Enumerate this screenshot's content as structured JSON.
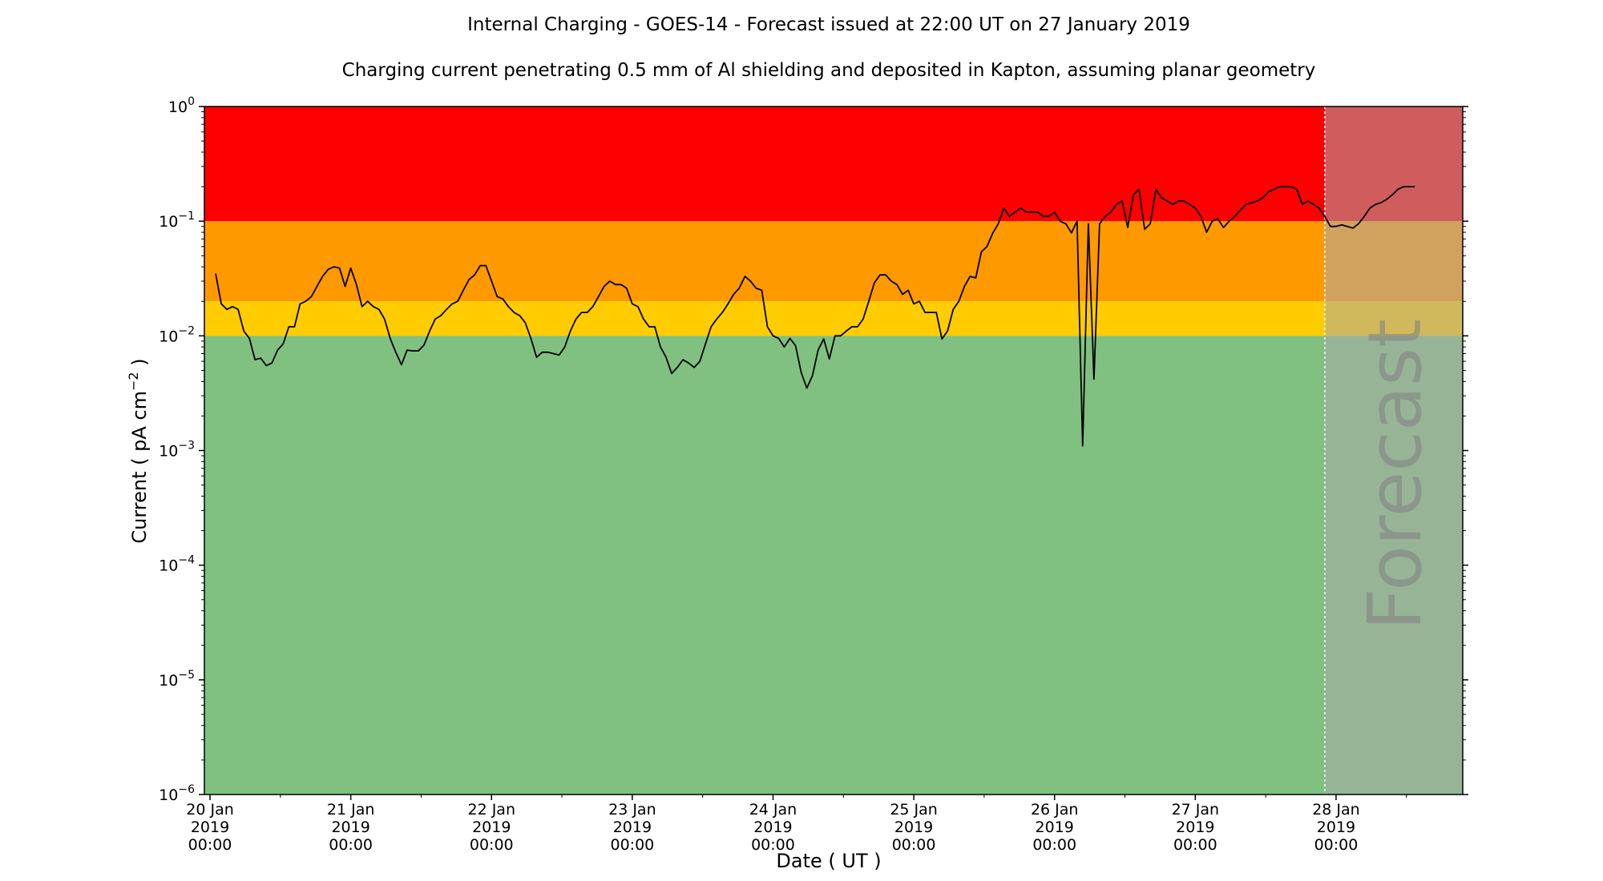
{
  "chart_data": {
    "type": "line",
    "title": "Internal Charging - GOES-14 - Forecast issued at 22:00 UT on 27 January 2019",
    "subtitle": "Charging current penetrating 0.5 mm of Al shielding and deposited in Kapton, assuming planar geometry",
    "xlabel": "Date ( UT )",
    "ylabel": "Current ( pA cm",
    "ylabel_exponent": "−2",
    "ylabel_suffix": " )",
    "yscale": "log",
    "ylim": [
      1e-06,
      1
    ],
    "xlim_days": [
      19.96,
      28.9
    ],
    "x_unit": "day of January 2019",
    "y_ticks": [
      {
        "base": "10",
        "exp": "−6",
        "value": 1e-06
      },
      {
        "base": "10",
        "exp": "−5",
        "value": 1e-05
      },
      {
        "base": "10",
        "exp": "−4",
        "value": 0.0001
      },
      {
        "base": "10",
        "exp": "−3",
        "value": 0.001
      },
      {
        "base": "10",
        "exp": "−2",
        "value": 0.01
      },
      {
        "base": "10",
        "exp": "−1",
        "value": 0.1
      },
      {
        "base": "10",
        "exp": "0",
        "value": 1
      }
    ],
    "x_ticks": [
      {
        "day": 20,
        "lines": [
          "20 Jan",
          "2019",
          "00:00"
        ]
      },
      {
        "day": 21,
        "lines": [
          "21 Jan",
          "2019",
          "00:00"
        ]
      },
      {
        "day": 22,
        "lines": [
          "22 Jan",
          "2019",
          "00:00"
        ]
      },
      {
        "day": 23,
        "lines": [
          "23 Jan",
          "2019",
          "00:00"
        ]
      },
      {
        "day": 24,
        "lines": [
          "24 Jan",
          "2019",
          "00:00"
        ]
      },
      {
        "day": 25,
        "lines": [
          "25 Jan",
          "2019",
          "00:00"
        ]
      },
      {
        "day": 26,
        "lines": [
          "26 Jan",
          "2019",
          "00:00"
        ]
      },
      {
        "day": 27,
        "lines": [
          "27 Jan",
          "2019",
          "00:00"
        ]
      },
      {
        "day": 28,
        "lines": [
          "28 Jan",
          "2019",
          "00:00"
        ]
      }
    ],
    "minor_x_ticks": [
      20.5,
      21.5,
      22.5,
      23.5,
      24.5,
      25.5,
      26.5,
      27.5,
      28.5
    ],
    "bands": [
      {
        "name": "red",
        "from": 0.1,
        "to": 1,
        "color": "#ff0000"
      },
      {
        "name": "orange",
        "from": 0.02,
        "to": 0.1,
        "color": "#ff9900"
      },
      {
        "name": "yellow",
        "from": 0.01,
        "to": 0.02,
        "color": "#ffcc00"
      },
      {
        "name": "green",
        "from": 1e-06,
        "to": 0.01,
        "color": "#80c080"
      }
    ],
    "forecast": {
      "start_day": 27.92,
      "label": "Forecast",
      "overlay_color": "#a9a9a9",
      "overlay_opacity": 0.55
    },
    "series": [
      {
        "color": "#000000",
        "points": [
          [
            20.04,
            0.035
          ],
          [
            20.08,
            0.019
          ],
          [
            20.12,
            0.017
          ],
          [
            20.16,
            0.018
          ],
          [
            20.2,
            0.017
          ],
          [
            20.24,
            0.011
          ],
          [
            20.28,
            0.0095
          ],
          [
            20.32,
            0.0062
          ],
          [
            20.36,
            0.0064
          ],
          [
            20.4,
            0.0055
          ],
          [
            20.44,
            0.0058
          ],
          [
            20.48,
            0.0075
          ],
          [
            20.52,
            0.0085
          ],
          [
            20.56,
            0.012
          ],
          [
            20.6,
            0.012
          ],
          [
            20.64,
            0.019
          ],
          [
            20.68,
            0.02
          ],
          [
            20.72,
            0.022
          ],
          [
            20.76,
            0.027
          ],
          [
            20.8,
            0.033
          ],
          [
            20.84,
            0.038
          ],
          [
            20.88,
            0.04
          ],
          [
            20.92,
            0.039
          ],
          [
            20.96,
            0.027
          ],
          [
            21.0,
            0.039
          ],
          [
            21.04,
            0.028
          ],
          [
            21.08,
            0.018
          ],
          [
            21.12,
            0.02
          ],
          [
            21.16,
            0.018
          ],
          [
            21.2,
            0.017
          ],
          [
            21.24,
            0.014
          ],
          [
            21.28,
            0.0095
          ],
          [
            21.32,
            0.0072
          ],
          [
            21.36,
            0.0056
          ],
          [
            21.4,
            0.0075
          ],
          [
            21.44,
            0.0074
          ],
          [
            21.48,
            0.0074
          ],
          [
            21.52,
            0.0083
          ],
          [
            21.56,
            0.011
          ],
          [
            21.6,
            0.014
          ],
          [
            21.64,
            0.015
          ],
          [
            21.68,
            0.017
          ],
          [
            21.72,
            0.019
          ],
          [
            21.76,
            0.02
          ],
          [
            21.8,
            0.025
          ],
          [
            21.84,
            0.031
          ],
          [
            21.88,
            0.034
          ],
          [
            21.92,
            0.041
          ],
          [
            21.96,
            0.041
          ],
          [
            22.0,
            0.03
          ],
          [
            22.04,
            0.022
          ],
          [
            22.08,
            0.021
          ],
          [
            22.12,
            0.018
          ],
          [
            22.16,
            0.016
          ],
          [
            22.2,
            0.015
          ],
          [
            22.24,
            0.013
          ],
          [
            22.28,
            0.0095
          ],
          [
            22.32,
            0.0065
          ],
          [
            22.36,
            0.0072
          ],
          [
            22.4,
            0.0072
          ],
          [
            22.44,
            0.007
          ],
          [
            22.48,
            0.0068
          ],
          [
            22.52,
            0.008
          ],
          [
            22.56,
            0.011
          ],
          [
            22.6,
            0.014
          ],
          [
            22.64,
            0.016
          ],
          [
            22.68,
            0.016
          ],
          [
            22.72,
            0.018
          ],
          [
            22.76,
            0.022
          ],
          [
            22.8,
            0.027
          ],
          [
            22.84,
            0.03
          ],
          [
            22.88,
            0.028
          ],
          [
            22.92,
            0.028
          ],
          [
            22.96,
            0.026
          ],
          [
            23.0,
            0.019
          ],
          [
            23.04,
            0.018
          ],
          [
            23.08,
            0.014
          ],
          [
            23.12,
            0.012
          ],
          [
            23.16,
            0.012
          ],
          [
            23.2,
            0.008
          ],
          [
            23.24,
            0.0065
          ],
          [
            23.28,
            0.0047
          ],
          [
            23.32,
            0.0053
          ],
          [
            23.36,
            0.0062
          ],
          [
            23.4,
            0.0058
          ],
          [
            23.44,
            0.0053
          ],
          [
            23.48,
            0.006
          ],
          [
            23.52,
            0.0085
          ],
          [
            23.56,
            0.012
          ],
          [
            23.6,
            0.014
          ],
          [
            23.64,
            0.016
          ],
          [
            23.68,
            0.019
          ],
          [
            23.72,
            0.023
          ],
          [
            23.76,
            0.026
          ],
          [
            23.8,
            0.033
          ],
          [
            23.84,
            0.03
          ],
          [
            23.88,
            0.026
          ],
          [
            23.92,
            0.025
          ],
          [
            23.96,
            0.012
          ],
          [
            24.0,
            0.01
          ],
          [
            24.04,
            0.0095
          ],
          [
            24.08,
            0.008
          ],
          [
            24.12,
            0.0095
          ],
          [
            24.16,
            0.0082
          ],
          [
            24.2,
            0.0048
          ],
          [
            24.24,
            0.0035
          ],
          [
            24.28,
            0.0045
          ],
          [
            24.32,
            0.0075
          ],
          [
            24.36,
            0.0094
          ],
          [
            24.4,
            0.0063
          ],
          [
            24.44,
            0.01
          ],
          [
            24.48,
            0.01
          ],
          [
            24.52,
            0.011
          ],
          [
            24.56,
            0.012
          ],
          [
            24.6,
            0.012
          ],
          [
            24.64,
            0.014
          ],
          [
            24.68,
            0.02
          ],
          [
            24.72,
            0.029
          ],
          [
            24.76,
            0.034
          ],
          [
            24.8,
            0.034
          ],
          [
            24.84,
            0.03
          ],
          [
            24.88,
            0.028
          ],
          [
            24.92,
            0.023
          ],
          [
            24.96,
            0.025
          ],
          [
            25.0,
            0.019
          ],
          [
            25.04,
            0.02
          ],
          [
            25.08,
            0.016
          ],
          [
            25.12,
            0.016
          ],
          [
            25.16,
            0.016
          ],
          [
            25.2,
            0.0094
          ],
          [
            25.24,
            0.011
          ],
          [
            25.28,
            0.017
          ],
          [
            25.32,
            0.02
          ],
          [
            25.36,
            0.027
          ],
          [
            25.4,
            0.033
          ],
          [
            25.44,
            0.032
          ],
          [
            25.48,
            0.054
          ],
          [
            25.52,
            0.06
          ],
          [
            25.56,
            0.078
          ],
          [
            25.6,
            0.095
          ],
          [
            25.64,
            0.13
          ],
          [
            25.68,
            0.11
          ],
          [
            25.72,
            0.12
          ],
          [
            25.76,
            0.13
          ],
          [
            25.8,
            0.12
          ],
          [
            25.84,
            0.12
          ],
          [
            25.88,
            0.12
          ],
          [
            25.92,
            0.11
          ],
          [
            25.96,
            0.11
          ],
          [
            26.0,
            0.12
          ],
          [
            26.04,
            0.1
          ],
          [
            26.08,
            0.095
          ],
          [
            26.12,
            0.079
          ],
          [
            26.16,
            0.1
          ],
          [
            26.2,
            0.0011
          ],
          [
            26.24,
            0.095
          ],
          [
            26.28,
            0.0042
          ],
          [
            26.32,
            0.095
          ],
          [
            26.36,
            0.11
          ],
          [
            26.4,
            0.12
          ],
          [
            26.44,
            0.14
          ],
          [
            26.48,
            0.15
          ],
          [
            26.52,
            0.088
          ],
          [
            26.56,
            0.17
          ],
          [
            26.6,
            0.19
          ],
          [
            26.64,
            0.085
          ],
          [
            26.68,
            0.095
          ],
          [
            26.72,
            0.19
          ],
          [
            26.76,
            0.16
          ],
          [
            26.8,
            0.15
          ],
          [
            26.84,
            0.14
          ],
          [
            26.88,
            0.15
          ],
          [
            26.92,
            0.15
          ],
          [
            26.96,
            0.14
          ],
          [
            27.0,
            0.13
          ],
          [
            27.04,
            0.11
          ],
          [
            27.08,
            0.08
          ],
          [
            27.12,
            0.1
          ],
          [
            27.16,
            0.105
          ],
          [
            27.2,
            0.088
          ],
          [
            27.24,
            0.1
          ],
          [
            27.28,
            0.11
          ],
          [
            27.32,
            0.125
          ],
          [
            27.36,
            0.14
          ],
          [
            27.4,
            0.145
          ],
          [
            27.44,
            0.15
          ],
          [
            27.48,
            0.16
          ],
          [
            27.52,
            0.18
          ],
          [
            27.56,
            0.19
          ],
          [
            27.6,
            0.2
          ],
          [
            27.64,
            0.2
          ],
          [
            27.68,
            0.2
          ],
          [
            27.72,
            0.19
          ],
          [
            27.76,
            0.14
          ],
          [
            27.8,
            0.15
          ],
          [
            27.84,
            0.14
          ],
          [
            27.88,
            0.13
          ],
          [
            27.92,
            0.11
          ],
          [
            27.96,
            0.09
          ],
          [
            28.0,
            0.09
          ],
          [
            28.04,
            0.093
          ],
          [
            28.08,
            0.09
          ],
          [
            28.12,
            0.087
          ],
          [
            28.16,
            0.095
          ],
          [
            28.2,
            0.11
          ],
          [
            28.24,
            0.13
          ],
          [
            28.28,
            0.14
          ],
          [
            28.32,
            0.145
          ],
          [
            28.36,
            0.155
          ],
          [
            28.4,
            0.17
          ],
          [
            28.44,
            0.19
          ],
          [
            28.48,
            0.2
          ],
          [
            28.52,
            0.2
          ],
          [
            28.56,
            0.2
          ]
        ]
      }
    ]
  }
}
